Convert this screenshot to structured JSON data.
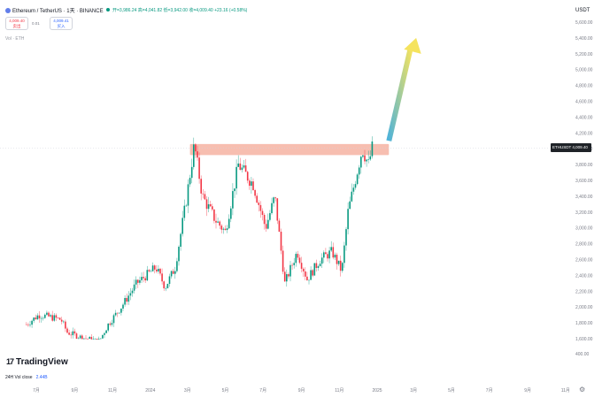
{
  "header": {
    "title": "Ethereum / TetherUS · 1天 · BINANCE",
    "ohlc_text": "开=3,986.24  高=4,041.82  低=3,942.00  收=4,009.40  +23.16 (+0.58%)",
    "sell_price": "4,009.40",
    "sell_label": "卖出",
    "spread": "0.01",
    "buy_price": "4,009.41",
    "buy_label": "买入",
    "volume_label": "Vol · ETH"
  },
  "price_scale": {
    "currency": "USDT"
  },
  "current_price_tag": "ETHUSDT  4,009.40",
  "branding": {
    "logo_mark": "17",
    "logo_text": "TradingView"
  },
  "footer": {
    "vol_label": "24H Vol close",
    "vol_value": "2.44B",
    "settings_icon": "gear-icon"
  },
  "colors": {
    "up": "#089981",
    "down": "#f23645",
    "resistance_zone": "#f4a896",
    "arrow_start": "#4fb3d9",
    "arrow_end": "#f5e35e",
    "text": "#131722",
    "axis_text": "#787b86"
  },
  "chart_data": {
    "type": "candlestick",
    "title": "Ethereum / TetherUS · 1天 · BINANCE",
    "y_ticks": [
      400,
      1600,
      1800,
      2000,
      2200,
      2400,
      2600,
      2800,
      3000,
      3200,
      3400,
      3600,
      3800,
      4000,
      4200,
      4400,
      4600,
      4800,
      5000,
      5200,
      5400,
      5600
    ],
    "y_tick_labels": [
      "400.00",
      "1,600.00",
      "1,800.00",
      "2,000.00",
      "2,200.00",
      "2,400.00",
      "2,600.00",
      "2,800.00",
      "3,000.00",
      "3,200.00",
      "3,400.00",
      "3,600.00",
      "3,800.00",
      "4,000.00",
      "4,200.00",
      "4,400.00",
      "4,600.00",
      "4,800.00",
      "5,000.00",
      "5,200.00",
      "5,400.00",
      "5,600.00"
    ],
    "x_tick_labels": [
      "7月",
      "9月",
      "11月",
      "2024",
      "3月",
      "5月",
      "7月",
      "9月",
      "11月",
      "2025",
      "3月",
      "5月",
      "7月",
      "9月",
      "11月"
    ],
    "price_path": [
      {
        "d": "2023-06-15",
        "c": 1780
      },
      {
        "d": "2023-07-05",
        "c": 1900
      },
      {
        "d": "2023-07-20",
        "c": 1880
      },
      {
        "d": "2023-08-10",
        "c": 1840
      },
      {
        "d": "2023-08-20",
        "c": 1680
      },
      {
        "d": "2023-09-10",
        "c": 1620
      },
      {
        "d": "2023-10-10",
        "c": 1560
      },
      {
        "d": "2023-10-25",
        "c": 1780
      },
      {
        "d": "2023-11-15",
        "c": 2000
      },
      {
        "d": "2023-12-10",
        "c": 2300
      },
      {
        "d": "2024-01-10",
        "c": 2500
      },
      {
        "d": "2024-01-25",
        "c": 2250
      },
      {
        "d": "2024-02-10",
        "c": 2500
      },
      {
        "d": "2024-02-28",
        "c": 3350
      },
      {
        "d": "2024-03-12",
        "c": 4050
      },
      {
        "d": "2024-03-25",
        "c": 3400
      },
      {
        "d": "2024-04-15",
        "c": 3100
      },
      {
        "d": "2024-05-01",
        "c": 2950
      },
      {
        "d": "2024-05-22",
        "c": 3800
      },
      {
        "d": "2024-06-15",
        "c": 3550
      },
      {
        "d": "2024-07-05",
        "c": 3000
      },
      {
        "d": "2024-07-20",
        "c": 3400
      },
      {
        "d": "2024-08-05",
        "c": 2300
      },
      {
        "d": "2024-08-25",
        "c": 2700
      },
      {
        "d": "2024-09-10",
        "c": 2350
      },
      {
        "d": "2024-10-01",
        "c": 2600
      },
      {
        "d": "2024-10-20",
        "c": 2700
      },
      {
        "d": "2024-11-05",
        "c": 2450
      },
      {
        "d": "2024-11-15",
        "c": 3200
      },
      {
        "d": "2024-12-08",
        "c": 4000
      },
      {
        "d": "2024-12-18",
        "c": 3800
      },
      {
        "d": "2024-12-24",
        "c": 4009.4
      }
    ],
    "resistance_zone": {
      "from": "2024-03-05",
      "to": "2025-01-20",
      "low": 3920,
      "high": 4060
    },
    "projection_arrow": {
      "from": {
        "d": "2025-01-20",
        "price": 4100
      },
      "to": {
        "d": "2025-03-05",
        "price": 5400
      }
    },
    "current_price": 4009.4
  }
}
